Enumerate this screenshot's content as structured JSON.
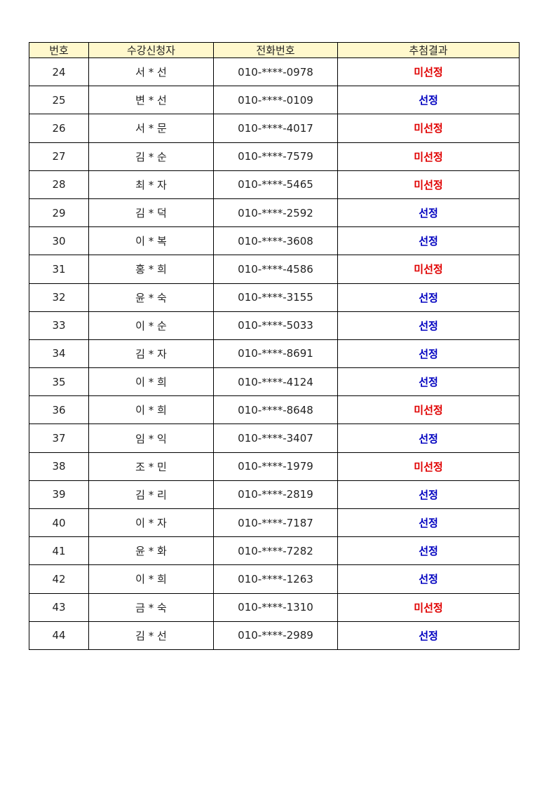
{
  "headers": [
    "번호",
    "수강신청자",
    "전화번호",
    "추첨결과"
  ],
  "colors": {
    "header_bg": "#fff8cc",
    "not_selected": "#e00000",
    "selected": "#0000c0"
  },
  "rows": [
    {
      "no": "24",
      "name": "서 * 선",
      "phone": "010-****-0978",
      "result": "미선정"
    },
    {
      "no": "25",
      "name": "변 * 선",
      "phone": "010-****-0109",
      "result": "선정"
    },
    {
      "no": "26",
      "name": "서 * 문",
      "phone": "010-****-4017",
      "result": "미선정"
    },
    {
      "no": "27",
      "name": "김 * 순",
      "phone": "010-****-7579",
      "result": "미선정"
    },
    {
      "no": "28",
      "name": "최 * 자",
      "phone": "010-****-5465",
      "result": "미선정"
    },
    {
      "no": "29",
      "name": "김 * 덕",
      "phone": "010-****-2592",
      "result": "선정"
    },
    {
      "no": "30",
      "name": "이 * 복",
      "phone": "010-****-3608",
      "result": "선정"
    },
    {
      "no": "31",
      "name": "홍 * 희",
      "phone": "010-****-4586",
      "result": "미선정"
    },
    {
      "no": "32",
      "name": "윤 * 숙",
      "phone": "010-****-3155",
      "result": "선정"
    },
    {
      "no": "33",
      "name": "이 * 순",
      "phone": "010-****-5033",
      "result": "선정"
    },
    {
      "no": "34",
      "name": "김 * 자",
      "phone": "010-****-8691",
      "result": "선정"
    },
    {
      "no": "35",
      "name": "이 * 희",
      "phone": "010-****-4124",
      "result": "선정"
    },
    {
      "no": "36",
      "name": "이 * 희",
      "phone": "010-****-8648",
      "result": "미선정"
    },
    {
      "no": "37",
      "name": "임 * 익",
      "phone": "010-****-3407",
      "result": "선정"
    },
    {
      "no": "38",
      "name": "조 * 민",
      "phone": "010-****-1979",
      "result": "미선정"
    },
    {
      "no": "39",
      "name": "김 * 리",
      "phone": "010-****-2819",
      "result": "선정"
    },
    {
      "no": "40",
      "name": "이 * 자",
      "phone": "010-****-7187",
      "result": "선정"
    },
    {
      "no": "41",
      "name": "윤 * 화",
      "phone": "010-****-7282",
      "result": "선정"
    },
    {
      "no": "42",
      "name": "이 * 희",
      "phone": "010-****-1263",
      "result": "선정"
    },
    {
      "no": "43",
      "name": "금 * 숙",
      "phone": "010-****-1310",
      "result": "미선정"
    },
    {
      "no": "44",
      "name": "김 * 선",
      "phone": "010-****-2989",
      "result": "선정"
    }
  ]
}
